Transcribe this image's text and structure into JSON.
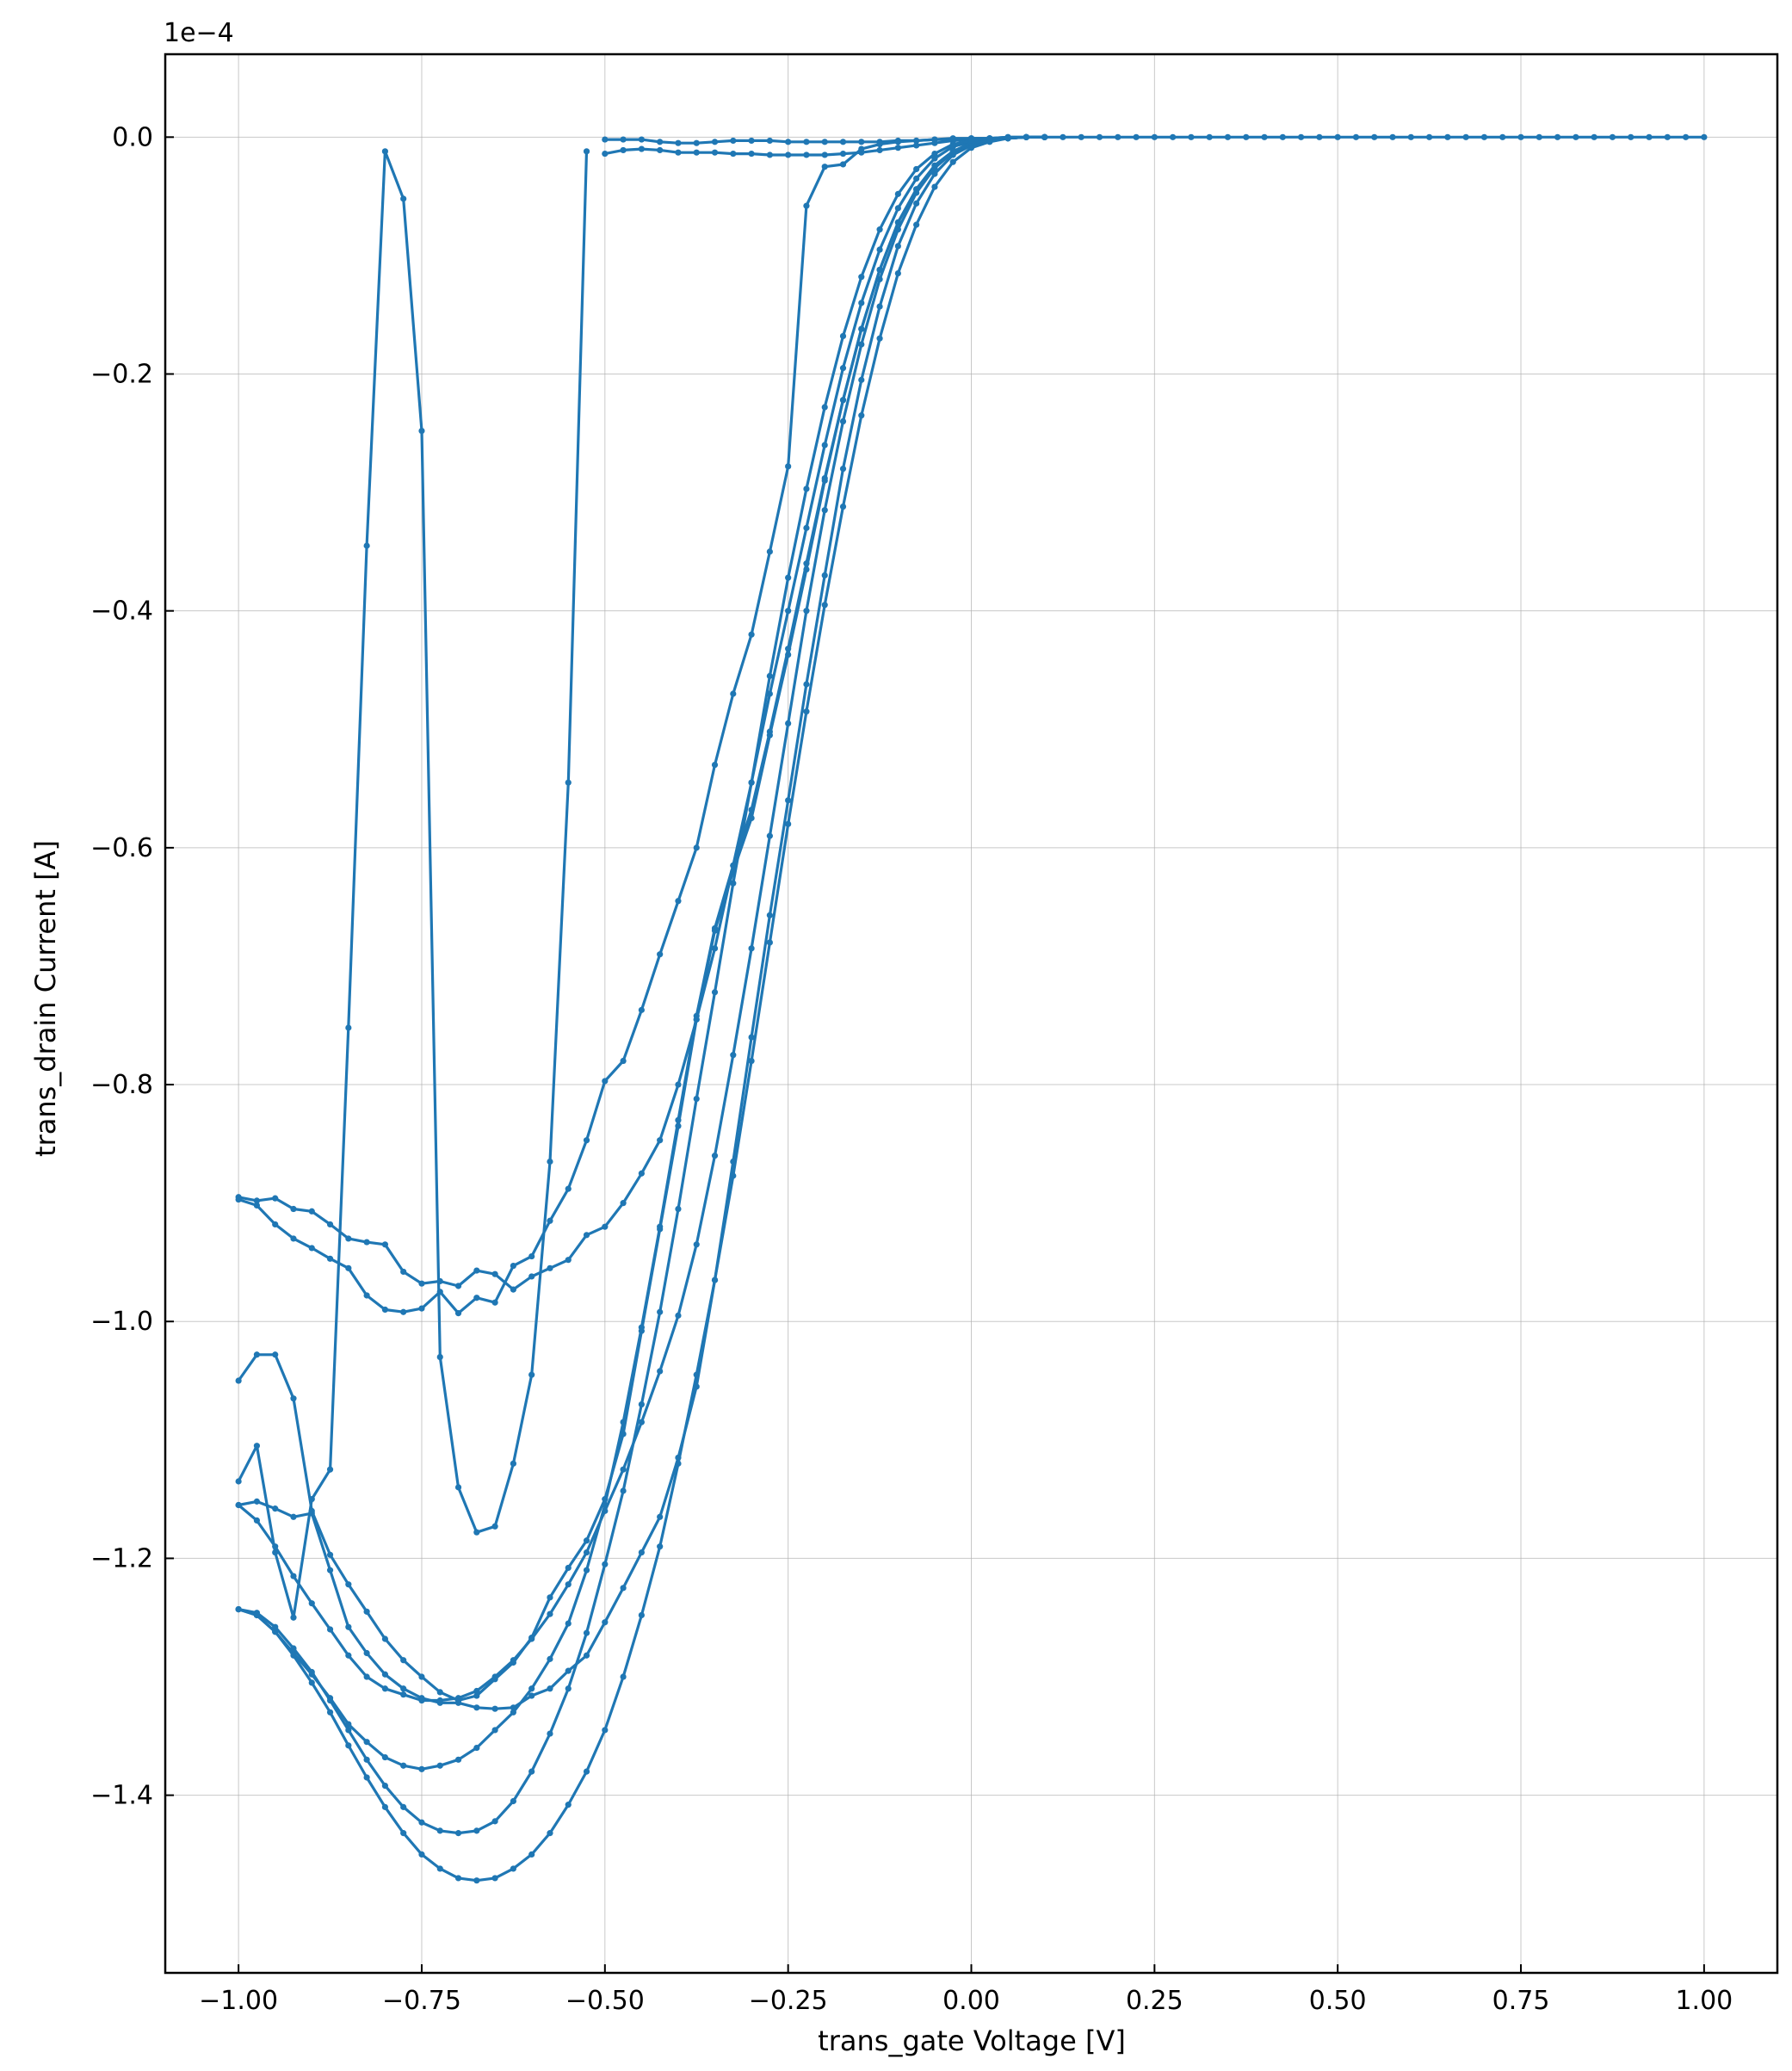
{
  "chart_data": {
    "type": "line",
    "title": "",
    "xlabel": "trans_gate Voltage [V]",
    "ylabel": "trans_drain Current [A]",
    "y_offset_label": "1e−4",
    "xlim": [
      -1.1,
      1.1
    ],
    "ylim": [
      -1.55,
      0.07
    ],
    "x_ticks": [
      -1.0,
      -0.75,
      -0.5,
      -0.25,
      0.0,
      0.25,
      0.5,
      0.75,
      1.0
    ],
    "x_tick_labels": [
      "−1.00",
      "−0.75",
      "−0.50",
      "−0.25",
      "0.00",
      "0.25",
      "0.50",
      "0.75",
      "1.00"
    ],
    "y_ticks": [
      0.0,
      -0.2,
      -0.4,
      -0.6,
      -0.8,
      -1.0,
      -1.2,
      -1.4
    ],
    "y_tick_labels": [
      "0.0",
      "−0.2",
      "−0.4",
      "−0.6",
      "−0.8",
      "−1.0",
      "−1.2",
      "−1.4"
    ],
    "grid": true,
    "color": "#1f77b4",
    "series": [
      {
        "x": [
          -0.5,
          -0.475,
          -0.45,
          -0.425,
          -0.4,
          -0.375,
          -0.35,
          -0.325,
          -0.3,
          -0.275,
          -0.25,
          -0.225,
          -0.2,
          -0.175,
          -0.15,
          -0.125,
          -0.1,
          -0.075,
          -0.05,
          -0.025,
          0.0,
          0.025,
          0.05,
          0.075,
          0.1,
          0.125,
          0.15,
          0.175,
          0.2,
          0.225,
          0.25,
          0.275,
          0.3,
          0.325,
          0.35,
          0.375,
          0.4,
          0.425,
          0.45,
          0.475,
          0.5,
          0.525,
          0.55,
          0.575,
          0.6,
          0.625,
          0.65,
          0.675,
          0.7,
          0.725,
          0.75,
          0.775,
          0.8,
          0.825,
          0.85,
          0.875,
          0.9,
          0.925,
          0.95,
          0.975,
          1.0
        ],
        "y": [
          -0.002,
          -0.002,
          -0.002,
          -0.004,
          -0.005,
          -0.005,
          -0.004,
          -0.003,
          -0.003,
          -0.003,
          -0.004,
          -0.004,
          -0.004,
          -0.004,
          -0.004,
          -0.004,
          -0.003,
          -0.003,
          -0.002,
          -0.002,
          -0.001,
          -0.001,
          -0.001,
          0,
          0,
          0,
          0,
          0,
          0,
          0,
          0,
          0,
          0,
          0,
          0,
          0,
          0,
          0,
          0,
          0,
          0,
          0,
          0,
          0,
          0,
          0,
          0,
          0,
          0,
          0,
          0,
          0,
          0,
          0,
          0,
          0,
          0,
          0,
          0,
          0,
          0
        ]
      },
      {
        "x": [
          -0.5,
          -0.475,
          -0.45,
          -0.425,
          -0.4,
          -0.375,
          -0.35,
          -0.325,
          -0.3,
          -0.275,
          -0.25,
          -0.225,
          -0.2,
          -0.175,
          -0.15,
          -0.125,
          -0.1,
          -0.075,
          -0.05,
          -0.025,
          0.0
        ],
        "y": [
          -0.014,
          -0.011,
          -0.01,
          -0.011,
          -0.013,
          -0.013,
          -0.013,
          -0.014,
          -0.014,
          -0.015,
          -0.015,
          -0.015,
          -0.015,
          -0.014,
          -0.013,
          -0.011,
          -0.009,
          -0.007,
          -0.005,
          -0.003,
          -0.002
        ]
      },
      {
        "x": [
          -1.0,
          -0.975,
          -0.95,
          -0.925,
          -0.9,
          -0.875,
          -0.85,
          -0.825,
          -0.8,
          -0.775,
          -0.75,
          -0.725,
          -0.7,
          -0.675,
          -0.65,
          -0.625,
          -0.6,
          -0.575,
          -0.55,
          -0.525
        ],
        "y": [
          -1.135,
          -1.105,
          -1.195,
          -1.25,
          -1.15,
          -1.125,
          -0.752,
          -0.345,
          -0.012,
          -0.052,
          -0.248,
          -1.03,
          -1.14,
          -1.178,
          -1.173,
          -1.12,
          -1.045,
          -0.865,
          -0.545,
          -0.012
        ]
      },
      {
        "x": [
          -1.0,
          -0.975,
          -0.95,
          -0.925,
          -0.9,
          -0.875,
          -0.85,
          -0.825,
          -0.8,
          -0.775,
          -0.75,
          -0.725,
          -0.7,
          -0.675,
          -0.65,
          -0.625,
          -0.6,
          -0.575,
          -0.55,
          -0.525,
          -0.5,
          -0.475,
          -0.45,
          -0.425,
          -0.4,
          -0.375,
          -0.35,
          -0.325,
          -0.3,
          -0.275,
          -0.25,
          -0.225,
          -0.2,
          -0.175,
          -0.15,
          -0.125,
          -0.1,
          -0.075,
          -0.05,
          -0.025,
          0.0,
          0.025,
          0.05,
          0.075,
          0.1
        ],
        "y": [
          -0.895,
          -0.898,
          -0.896,
          -0.905,
          -0.907,
          -0.918,
          -0.93,
          -0.933,
          -0.935,
          -0.958,
          -0.968,
          -0.966,
          -0.97,
          -0.957,
          -0.96,
          -0.973,
          -0.962,
          -0.955,
          -0.948,
          -0.927,
          -0.92,
          -0.9,
          -0.875,
          -0.847,
          -0.8,
          -0.745,
          -0.685,
          -0.615,
          -0.545,
          -0.47,
          -0.4,
          -0.33,
          -0.26,
          -0.195,
          -0.14,
          -0.095,
          -0.06,
          -0.035,
          -0.018,
          -0.008,
          -0.004,
          -0.002,
          -0.001,
          0,
          0
        ]
      },
      {
        "x": [
          -1.0,
          -0.975,
          -0.95,
          -0.925,
          -0.9,
          -0.875,
          -0.85,
          -0.825,
          -0.8,
          -0.775,
          -0.75,
          -0.725,
          -0.7,
          -0.675,
          -0.65,
          -0.625,
          -0.6,
          -0.575,
          -0.55,
          -0.525,
          -0.5,
          -0.475,
          -0.45,
          -0.425,
          -0.4,
          -0.375,
          -0.35,
          -0.325,
          -0.3,
          -0.275,
          -0.25,
          -0.225,
          -0.2,
          -0.175,
          -0.15,
          -0.125,
          -0.1,
          -0.075,
          -0.05,
          -0.025,
          0.0,
          0.025,
          0.05,
          0.075,
          0.1
        ],
        "y": [
          -0.897,
          -0.902,
          -0.918,
          -0.93,
          -0.938,
          -0.947,
          -0.955,
          -0.978,
          -0.99,
          -0.992,
          -0.989,
          -0.975,
          -0.993,
          -0.98,
          -0.984,
          -0.953,
          -0.945,
          -0.915,
          -0.888,
          -0.847,
          -0.797,
          -0.78,
          -0.737,
          -0.69,
          -0.645,
          -0.6,
          -0.53,
          -0.47,
          -0.42,
          -0.35,
          -0.278,
          -0.058,
          -0.025,
          -0.023,
          -0.01,
          -0.006,
          -0.004,
          -0.003,
          -0.002,
          -0.001,
          -0.001,
          -0.001,
          0,
          0,
          0
        ]
      },
      {
        "x": [
          -1.0,
          -0.975,
          -0.95,
          -0.925,
          -0.9,
          -0.875,
          -0.85,
          -0.825,
          -0.8,
          -0.775,
          -0.75,
          -0.725,
          -0.7,
          -0.675,
          -0.65,
          -0.625,
          -0.6,
          -0.575,
          -0.55,
          -0.525,
          -0.5,
          -0.475,
          -0.45,
          -0.425,
          -0.4,
          -0.375,
          -0.35,
          -0.325,
          -0.3,
          -0.275,
          -0.25,
          -0.225,
          -0.2,
          -0.175,
          -0.15,
          -0.125,
          -0.1,
          -0.075,
          -0.05,
          -0.025,
          0.0,
          0.025,
          0.05,
          0.075,
          0.1
        ],
        "y": [
          -1.05,
          -1.028,
          -1.028,
          -1.065,
          -1.16,
          -1.197,
          -1.222,
          -1.245,
          -1.268,
          -1.286,
          -1.3,
          -1.313,
          -1.32,
          -1.316,
          -1.302,
          -1.288,
          -1.267,
          -1.233,
          -1.208,
          -1.185,
          -1.15,
          -1.095,
          -1.008,
          -0.922,
          -0.835,
          -0.745,
          -0.67,
          -0.62,
          -0.575,
          -0.505,
          -0.437,
          -0.365,
          -0.29,
          -0.222,
          -0.162,
          -0.112,
          -0.072,
          -0.044,
          -0.024,
          -0.012,
          -0.005,
          -0.002,
          -0.001,
          0,
          0
        ]
      },
      {
        "x": [
          -1.0,
          -0.975,
          -0.95,
          -0.925,
          -0.9,
          -0.875,
          -0.85,
          -0.825,
          -0.8,
          -0.775,
          -0.75,
          -0.725,
          -0.7,
          -0.675,
          -0.65,
          -0.625,
          -0.6,
          -0.575,
          -0.55,
          -0.525,
          -0.5,
          -0.475,
          -0.45,
          -0.425,
          -0.4,
          -0.375,
          -0.35,
          -0.325,
          -0.3,
          -0.275,
          -0.25,
          -0.225,
          -0.2,
          -0.175,
          -0.15,
          -0.125,
          -0.1,
          -0.075,
          -0.05,
          -0.025,
          0.0,
          0.025,
          0.05,
          0.075,
          0.1
        ],
        "y": [
          -1.155,
          -1.152,
          -1.158,
          -1.165,
          -1.162,
          -1.21,
          -1.258,
          -1.28,
          -1.298,
          -1.31,
          -1.318,
          -1.322,
          -1.322,
          -1.326,
          -1.327,
          -1.326,
          -1.316,
          -1.31,
          -1.295,
          -1.282,
          -1.254,
          -1.225,
          -1.195,
          -1.165,
          -1.115,
          -1.055,
          -0.965,
          -0.865,
          -0.76,
          -0.657,
          -0.56,
          -0.462,
          -0.37,
          -0.28,
          -0.205,
          -0.143,
          -0.092,
          -0.056,
          -0.031,
          -0.015,
          -0.007,
          -0.003,
          -0.001,
          0,
          0
        ]
      },
      {
        "x": [
          -1.0,
          -0.975,
          -0.95,
          -0.925,
          -0.9,
          -0.875,
          -0.85,
          -0.825,
          -0.8,
          -0.775,
          -0.75,
          -0.725,
          -0.7,
          -0.675,
          -0.65,
          -0.625,
          -0.6,
          -0.575,
          -0.55,
          -0.525,
          -0.5,
          -0.475,
          -0.45,
          -0.425,
          -0.4,
          -0.375,
          -0.35,
          -0.325,
          -0.3,
          -0.275,
          -0.25,
          -0.225,
          -0.2,
          -0.175,
          -0.15,
          -0.125,
          -0.1,
          -0.075,
          -0.05,
          -0.025,
          0.0,
          0.025,
          0.05,
          0.075,
          0.1
        ],
        "y": [
          -1.155,
          -1.168,
          -1.19,
          -1.215,
          -1.238,
          -1.26,
          -1.282,
          -1.3,
          -1.31,
          -1.315,
          -1.32,
          -1.32,
          -1.318,
          -1.312,
          -1.3,
          -1.286,
          -1.268,
          -1.247,
          -1.222,
          -1.195,
          -1.16,
          -1.125,
          -1.085,
          -1.042,
          -0.995,
          -0.935,
          -0.86,
          -0.775,
          -0.685,
          -0.59,
          -0.495,
          -0.4,
          -0.315,
          -0.24,
          -0.175,
          -0.12,
          -0.078,
          -0.047,
          -0.026,
          -0.013,
          -0.006,
          -0.002,
          -0.001,
          0,
          0
        ]
      },
      {
        "x": [
          -1.0,
          -0.975,
          -0.95,
          -0.925,
          -0.9,
          -0.875,
          -0.85,
          -0.825,
          -0.8,
          -0.775,
          -0.75,
          -0.725,
          -0.7,
          -0.675,
          -0.65,
          -0.625,
          -0.6,
          -0.575,
          -0.55,
          -0.525,
          -0.5,
          -0.475,
          -0.45,
          -0.425,
          -0.4,
          -0.375,
          -0.35,
          -0.325,
          -0.3,
          -0.275,
          -0.25,
          -0.225,
          -0.2,
          -0.175,
          -0.15,
          -0.125,
          -0.1,
          -0.075,
          -0.05,
          -0.025,
          0.0,
          0.025,
          0.05,
          0.075,
          0.1
        ],
        "y": [
          -1.243,
          -1.248,
          -1.262,
          -1.28,
          -1.298,
          -1.318,
          -1.34,
          -1.355,
          -1.368,
          -1.375,
          -1.378,
          -1.375,
          -1.37,
          -1.36,
          -1.345,
          -1.33,
          -1.31,
          -1.285,
          -1.255,
          -1.21,
          -1.155,
          -1.085,
          -1.005,
          -0.92,
          -0.83,
          -0.742,
          -0.668,
          -0.615,
          -0.568,
          -0.502,
          -0.432,
          -0.36,
          -0.288,
          -0.222,
          -0.162,
          -0.112,
          -0.072,
          -0.044,
          -0.024,
          -0.012,
          -0.005,
          -0.002,
          -0.001,
          0,
          0
        ]
      },
      {
        "x": [
          -1.0,
          -0.975,
          -0.95,
          -0.925,
          -0.9,
          -0.875,
          -0.85,
          -0.825,
          -0.8,
          -0.775,
          -0.75,
          -0.725,
          -0.7,
          -0.675,
          -0.65,
          -0.625,
          -0.6,
          -0.575,
          -0.55,
          -0.525,
          -0.5,
          -0.475,
          -0.45,
          -0.425,
          -0.4,
          -0.375,
          -0.35,
          -0.325,
          -0.3,
          -0.275,
          -0.25,
          -0.225,
          -0.2,
          -0.175,
          -0.15,
          -0.125,
          -0.1,
          -0.075,
          -0.05,
          -0.025,
          0.0,
          0.025,
          0.05,
          0.075,
          0.1
        ],
        "y": [
          -1.243,
          -1.246,
          -1.258,
          -1.276,
          -1.296,
          -1.32,
          -1.345,
          -1.37,
          -1.392,
          -1.41,
          -1.423,
          -1.43,
          -1.432,
          -1.43,
          -1.422,
          -1.405,
          -1.38,
          -1.348,
          -1.31,
          -1.263,
          -1.205,
          -1.143,
          -1.07,
          -0.992,
          -0.905,
          -0.812,
          -0.722,
          -0.63,
          -0.545,
          -0.455,
          -0.372,
          -0.297,
          -0.228,
          -0.168,
          -0.118,
          -0.078,
          -0.048,
          -0.027,
          -0.014,
          -0.006,
          -0.003,
          -0.001,
          0,
          0,
          0
        ]
      },
      {
        "x": [
          -1.0,
          -0.975,
          -0.95,
          -0.925,
          -0.9,
          -0.875,
          -0.85,
          -0.825,
          -0.8,
          -0.775,
          -0.75,
          -0.725,
          -0.7,
          -0.675,
          -0.65,
          -0.625,
          -0.6,
          -0.575,
          -0.55,
          -0.525,
          -0.5,
          -0.475,
          -0.45,
          -0.425,
          -0.4,
          -0.375,
          -0.35,
          -0.325,
          -0.3,
          -0.275,
          -0.25,
          -0.225,
          -0.2,
          -0.175,
          -0.15,
          -0.125,
          -0.1,
          -0.075,
          -0.05,
          -0.025,
          0.0,
          0.025,
          0.05,
          0.075,
          0.1
        ],
        "y": [
          -1.243,
          -1.248,
          -1.262,
          -1.282,
          -1.305,
          -1.33,
          -1.358,
          -1.385,
          -1.41,
          -1.432,
          -1.45,
          -1.462,
          -1.47,
          -1.472,
          -1.47,
          -1.462,
          -1.45,
          -1.432,
          -1.408,
          -1.38,
          -1.345,
          -1.3,
          -1.248,
          -1.19,
          -1.12,
          -1.045,
          -0.965,
          -0.877,
          -0.78,
          -0.68,
          -0.58,
          -0.485,
          -0.395,
          -0.312,
          -0.235,
          -0.17,
          -0.115,
          -0.074,
          -0.042,
          -0.021,
          -0.009,
          -0.004,
          -0.001,
          0,
          0
        ]
      }
    ]
  }
}
